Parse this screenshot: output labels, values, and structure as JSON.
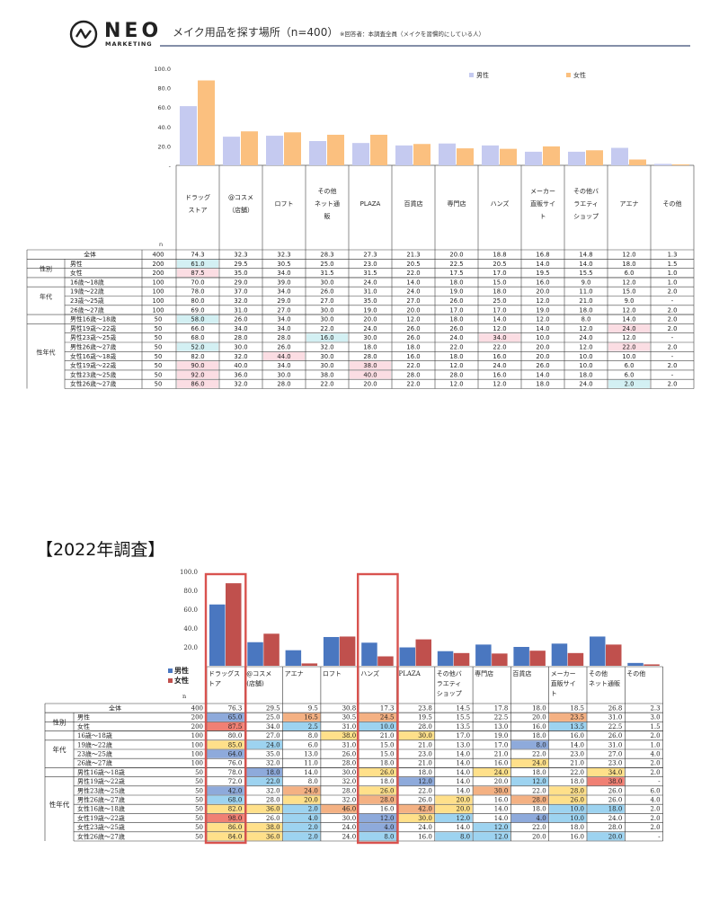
{
  "header": {
    "logo_text": "NEO",
    "logo_sub": "MARKETING",
    "title": "メイク用品を探す場所（n=400）",
    "note": "※回答者：本調査全員（メイクを習慣的にしている人）"
  },
  "section_title": "【2022年調査】",
  "colors": {
    "t1_male": "#c5caf0",
    "t1_female": "#fbc07f",
    "t1_low": "#d3f0f3",
    "t1_high": "#fbdde3",
    "t2_male": "#4a77c0",
    "t2_female": "#c0504d",
    "t2_dblue": "#8eaadb",
    "t2_lblue": "#9dd3f0",
    "t2_orange": "#f4b183",
    "t2_yellow": "#ffe08a",
    "t2_red": "#f08074",
    "highlight_box": "#d9534f"
  },
  "chart_data": [
    {
      "type": "bar",
      "title": "メイク用品を探す場所（n=400）",
      "yticks": [
        "100.0",
        "80.0",
        "60.0",
        "40.0",
        "20.0",
        "-"
      ],
      "ylim": [
        0,
        100
      ],
      "legend_position": "top-right",
      "legend": [
        "男性",
        "女性"
      ],
      "n_label": "n",
      "categories": [
        "ドラッグストア",
        "@コスメ（店舗）",
        "ロフト",
        "その他ネット通販",
        "PLAZA",
        "百貨店",
        "専門店",
        "ハンズ",
        "メーカー直販サイト",
        "その他バラエティショップ",
        "アエナ",
        "その他"
      ],
      "category_lines": [
        [
          "ドラッグ",
          "ストア"
        ],
        [
          "@コスメ",
          "（店舗）"
        ],
        [
          "ロフト"
        ],
        [
          "その他",
          "ネット通",
          "販"
        ],
        [
          "PLAZA"
        ],
        [
          "百貨店"
        ],
        [
          "専門店"
        ],
        [
          "ハンズ"
        ],
        [
          "メーカー",
          "直販サイ",
          "ト"
        ],
        [
          "その他バ",
          "ラエティ",
          "ショップ"
        ],
        [
          "アエナ"
        ],
        [
          "その他"
        ]
      ],
      "series": [
        {
          "name": "男性",
          "values": [
            61.0,
            29.5,
            30.5,
            25.0,
            23.0,
            20.5,
            22.5,
            20.5,
            14.0,
            14.0,
            18.0,
            1.5
          ]
        },
        {
          "name": "女性",
          "values": [
            87.5,
            35.0,
            34.0,
            31.5,
            31.5,
            22.0,
            17.5,
            17.0,
            19.5,
            15.5,
            6.0,
            1.0
          ]
        }
      ],
      "table": {
        "rows": [
          {
            "group": "",
            "label": "全体",
            "n": "400",
            "values": [
              "74.3",
              "32.3",
              "32.3",
              "28.3",
              "27.3",
              "21.3",
              "20.0",
              "18.8",
              "16.8",
              "14.8",
              "12.0",
              "1.3"
            ],
            "hl": {}
          },
          {
            "group": "性別",
            "label": "男性",
            "n": "200",
            "values": [
              "61.0",
              "29.5",
              "30.5",
              "25.0",
              "23.0",
              "20.5",
              "22.5",
              "20.5",
              "14.0",
              "14.0",
              "18.0",
              "1.5"
            ],
            "hl": {
              "0": "low"
            }
          },
          {
            "group": "",
            "label": "女性",
            "n": "200",
            "values": [
              "87.5",
              "35.0",
              "34.0",
              "31.5",
              "31.5",
              "22.0",
              "17.5",
              "17.0",
              "19.5",
              "15.5",
              "6.0",
              "1.0"
            ],
            "hl": {
              "0": "high"
            }
          },
          {
            "group": "年代",
            "label": "16歳～18歳",
            "n": "100",
            "values": [
              "70.0",
              "29.0",
              "39.0",
              "30.0",
              "24.0",
              "14.0",
              "18.0",
              "15.0",
              "16.0",
              "9.0",
              "12.0",
              "1.0"
            ],
            "hl": {}
          },
          {
            "group": "",
            "label": "19歳～22歳",
            "n": "100",
            "values": [
              "78.0",
              "37.0",
              "34.0",
              "26.0",
              "31.0",
              "24.0",
              "19.0",
              "18.0",
              "20.0",
              "11.0",
              "15.0",
              "2.0"
            ],
            "hl": {}
          },
          {
            "group": "",
            "label": "23歳～25歳",
            "n": "100",
            "values": [
              "80.0",
              "32.0",
              "29.0",
              "27.0",
              "35.0",
              "27.0",
              "26.0",
              "25.0",
              "12.0",
              "21.0",
              "9.0",
              "-"
            ],
            "hl": {}
          },
          {
            "group": "",
            "label": "26歳～27歳",
            "n": "100",
            "values": [
              "69.0",
              "31.0",
              "27.0",
              "30.0",
              "19.0",
              "20.0",
              "17.0",
              "17.0",
              "19.0",
              "18.0",
              "12.0",
              "2.0"
            ],
            "hl": {}
          },
          {
            "group": "性年代",
            "label": "男性16歳～18歳",
            "n": "50",
            "values": [
              "58.0",
              "26.0",
              "34.0",
              "30.0",
              "20.0",
              "12.0",
              "18.0",
              "14.0",
              "12.0",
              "8.0",
              "14.0",
              "2.0"
            ],
            "hl": {
              "0": "low"
            }
          },
          {
            "group": "",
            "label": "男性19歳～22歳",
            "n": "50",
            "values": [
              "66.0",
              "34.0",
              "34.0",
              "22.0",
              "24.0",
              "26.0",
              "26.0",
              "12.0",
              "14.0",
              "12.0",
              "24.0",
              "2.0"
            ],
            "hl": {
              "10": "high"
            }
          },
          {
            "group": "",
            "label": "男性23歳～25歳",
            "n": "50",
            "values": [
              "68.0",
              "28.0",
              "28.0",
              "16.0",
              "30.0",
              "26.0",
              "24.0",
              "34.0",
              "10.0",
              "24.0",
              "12.0",
              "-"
            ],
            "hl": {
              "3": "low",
              "7": "high"
            }
          },
          {
            "group": "",
            "label": "男性26歳～27歳",
            "n": "50",
            "values": [
              "52.0",
              "30.0",
              "26.0",
              "32.0",
              "18.0",
              "18.0",
              "22.0",
              "22.0",
              "20.0",
              "12.0",
              "22.0",
              "2.0"
            ],
            "hl": {
              "0": "low",
              "10": "high"
            }
          },
          {
            "group": "",
            "label": "女性16歳～18歳",
            "n": "50",
            "values": [
              "82.0",
              "32.0",
              "44.0",
              "30.0",
              "28.0",
              "16.0",
              "18.0",
              "16.0",
              "20.0",
              "10.0",
              "10.0",
              "-"
            ],
            "hl": {
              "2": "high"
            }
          },
          {
            "group": "",
            "label": "女性19歳～22歳",
            "n": "50",
            "values": [
              "90.0",
              "40.0",
              "34.0",
              "30.0",
              "38.0",
              "22.0",
              "12.0",
              "24.0",
              "26.0",
              "10.0",
              "6.0",
              "2.0"
            ],
            "hl": {
              "0": "high",
              "4": "high"
            }
          },
          {
            "group": "",
            "label": "女性23歳～25歳",
            "n": "50",
            "values": [
              "92.0",
              "36.0",
              "30.0",
              "38.0",
              "40.0",
              "28.0",
              "28.0",
              "16.0",
              "14.0",
              "18.0",
              "6.0",
              "-"
            ],
            "hl": {
              "0": "high",
              "4": "high"
            }
          },
          {
            "group": "",
            "label": "女性26歳～27歳",
            "n": "50",
            "values": [
              "86.0",
              "32.0",
              "28.0",
              "22.0",
              "20.0",
              "22.0",
              "12.0",
              "12.0",
              "18.0",
              "24.0",
              "2.0",
              "2.0"
            ],
            "hl": {
              "0": "high",
              "10": "low"
            }
          }
        ]
      }
    },
    {
      "type": "bar",
      "title": "【2022年調査】",
      "yticks": [
        "100.0",
        "80.0",
        "60.0",
        "40.0",
        "20.0"
      ],
      "ylim": [
        0,
        100
      ],
      "legend_position": "top-left",
      "legend": [
        "男性",
        "女性"
      ],
      "n_label": "n",
      "categories": [
        "ドラッグストア",
        "@コスメ（店舗）",
        "アエナ",
        "ロフト",
        "ハンズ",
        "PLAZA",
        "その他バラエティショップ",
        "専門店",
        "百貨店",
        "メーカー直販サイト",
        "その他ネット通販",
        "その他"
      ],
      "category_lines": [
        [
          "ドラッグス",
          "トア"
        ],
        [
          "@コスメ",
          "(店舗)"
        ],
        [
          "アエナ"
        ],
        [
          "ロフト"
        ],
        [
          "ハンズ"
        ],
        [
          "PLAZA"
        ],
        [
          "その他バ",
          "ラエティ",
          "ショップ"
        ],
        [
          "専門店"
        ],
        [
          "百貨店"
        ],
        [
          "メーカー",
          "直販サイ",
          "ト"
        ],
        [
          "その他",
          "ネット通販"
        ],
        [
          "その他"
        ]
      ],
      "series": [
        {
          "name": "男性",
          "values": [
            65.0,
            25.0,
            16.5,
            30.5,
            24.5,
            19.5,
            15.5,
            22.5,
            20.0,
            23.5,
            31.0,
            3.0
          ]
        },
        {
          "name": "女性",
          "values": [
            87.5,
            34.0,
            2.5,
            31.0,
            10.0,
            28.0,
            13.5,
            13.0,
            16.0,
            13.5,
            22.5,
            1.5
          ]
        }
      ],
      "highlight_categories": [
        "ドラッグストア",
        "ハンズ"
      ],
      "table": {
        "rows": [
          {
            "group": "",
            "label": "全体",
            "n": "400",
            "values": [
              "76.3",
              "29.5",
              "9.5",
              "30.8",
              "17.3",
              "23.8",
              "14.5",
              "17.8",
              "18.0",
              "18.5",
              "26.8",
              "2.3"
            ],
            "hl": {}
          },
          {
            "group": "性別",
            "label": "男性",
            "n": "200",
            "values": [
              "65.0",
              "25.0",
              "16.5",
              "30.5",
              "24.5",
              "19.5",
              "15.5",
              "22.5",
              "20.0",
              "23.5",
              "31.0",
              "3.0"
            ],
            "hl": {
              "0": "dblue",
              "2": "orange",
              "4": "orange",
              "9": "orange"
            }
          },
          {
            "group": "",
            "label": "女性",
            "n": "200",
            "values": [
              "87.5",
              "34.0",
              "2.5",
              "31.0",
              "10.0",
              "28.0",
              "13.5",
              "13.0",
              "16.0",
              "13.5",
              "22.5",
              "1.5"
            ],
            "hl": {
              "0": "red",
              "2": "lblue",
              "4": "lblue",
              "9": "lblue"
            }
          },
          {
            "group": "年代",
            "label": "16歳～18歳",
            "n": "100",
            "values": [
              "80.0",
              "27.0",
              "8.0",
              "38.0",
              "21.0",
              "30.0",
              "17.0",
              "19.0",
              "18.0",
              "16.0",
              "26.0",
              "2.0"
            ],
            "hl": {
              "3": "yellow",
              "5": "yellow"
            }
          },
          {
            "group": "",
            "label": "19歳～22歳",
            "n": "100",
            "values": [
              "85.0",
              "24.0",
              "6.0",
              "31.0",
              "15.0",
              "21.0",
              "13.0",
              "17.0",
              "8.0",
              "14.0",
              "31.0",
              "1.0"
            ],
            "hl": {
              "0": "yellow",
              "1": "lblue",
              "8": "dblue"
            }
          },
          {
            "group": "",
            "label": "23歳～25歳",
            "n": "100",
            "values": [
              "64.0",
              "35.0",
              "13.0",
              "26.0",
              "15.0",
              "23.0",
              "14.0",
              "21.0",
              "22.0",
              "23.0",
              "27.0",
              "4.0"
            ],
            "hl": {
              "0": "dblue"
            }
          },
          {
            "group": "",
            "label": "26歳～27歳",
            "n": "100",
            "values": [
              "76.0",
              "32.0",
              "11.0",
              "28.0",
              "18.0",
              "21.0",
              "14.0",
              "16.0",
              "24.0",
              "21.0",
              "23.0",
              "2.0"
            ],
            "hl": {
              "8": "yellow"
            }
          },
          {
            "group": "性年代",
            "label": "男性16歳～18歳",
            "n": "50",
            "values": [
              "78.0",
              "18.0",
              "14.0",
              "30.0",
              "26.0",
              "18.0",
              "14.0",
              "24.0",
              "18.0",
              "22.0",
              "34.0",
              "2.0"
            ],
            "hl": {
              "1": "dblue",
              "4": "yellow",
              "7": "yellow",
              "10": "yellow"
            }
          },
          {
            "group": "",
            "label": "男性19歳～22歳",
            "n": "50",
            "values": [
              "72.0",
              "22.0",
              "8.0",
              "32.0",
              "18.0",
              "12.0",
              "14.0",
              "20.0",
              "12.0",
              "18.0",
              "38.0",
              "-"
            ],
            "hl": {
              "1": "lblue",
              "5": "dblue",
              "8": "lblue",
              "10": "red"
            }
          },
          {
            "group": "",
            "label": "男性23歳～25歳",
            "n": "50",
            "values": [
              "42.0",
              "32.0",
              "24.0",
              "28.0",
              "26.0",
              "22.0",
              "14.0",
              "30.0",
              "22.0",
              "28.0",
              "26.0",
              "6.0"
            ],
            "hl": {
              "0": "dblue",
              "2": "orange",
              "4": "yellow",
              "7": "orange",
              "9": "yellow"
            }
          },
          {
            "group": "",
            "label": "男性26歳～27歳",
            "n": "50",
            "values": [
              "68.0",
              "28.0",
              "20.0",
              "32.0",
              "28.0",
              "26.0",
              "20.0",
              "16.0",
              "28.0",
              "26.0",
              "26.0",
              "4.0"
            ],
            "hl": {
              "0": "lblue",
              "2": "yellow",
              "4": "orange",
              "6": "yellow",
              "8": "orange",
              "9": "yellow"
            }
          },
          {
            "group": "",
            "label": "女性16歳～18歳",
            "n": "50",
            "values": [
              "82.0",
              "36.0",
              "2.0",
              "46.0",
              "16.0",
              "42.0",
              "20.0",
              "14.0",
              "18.0",
              "10.0",
              "18.0",
              "2.0"
            ],
            "hl": {
              "0": "yellow",
              "1": "yellow",
              "2": "lblue",
              "3": "orange",
              "5": "orange",
              "6": "yellow",
              "9": "lblue",
              "10": "lblue"
            }
          },
          {
            "group": "",
            "label": "女性19歳～22歳",
            "n": "50",
            "values": [
              "98.0",
              "26.0",
              "4.0",
              "30.0",
              "12.0",
              "30.0",
              "12.0",
              "14.0",
              "4.0",
              "10.0",
              "24.0",
              "2.0"
            ],
            "hl": {
              "0": "red",
              "2": "lblue",
              "4": "dblue",
              "5": "yellow",
              "6": "lblue",
              "8": "dblue",
              "9": "lblue"
            }
          },
          {
            "group": "",
            "label": "女性23歳～25歳",
            "n": "50",
            "values": [
              "86.0",
              "38.0",
              "2.0",
              "24.0",
              "4.0",
              "24.0",
              "14.0",
              "12.0",
              "22.0",
              "18.0",
              "28.0",
              "2.0"
            ],
            "hl": {
              "0": "yellow",
              "1": "yellow",
              "2": "lblue",
              "4": "dblue",
              "7": "lblue"
            }
          },
          {
            "group": "",
            "label": "女性26歳～27歳",
            "n": "50",
            "values": [
              "84.0",
              "36.0",
              "2.0",
              "24.0",
              "8.0",
              "16.0",
              "8.0",
              "12.0",
              "20.0",
              "16.0",
              "20.0",
              "-"
            ],
            "hl": {
              "0": "yellow",
              "1": "yellow",
              "2": "lblue",
              "4": "lblue",
              "6": "lblue",
              "7": "lblue",
              "10": "lblue"
            }
          }
        ]
      }
    }
  ]
}
